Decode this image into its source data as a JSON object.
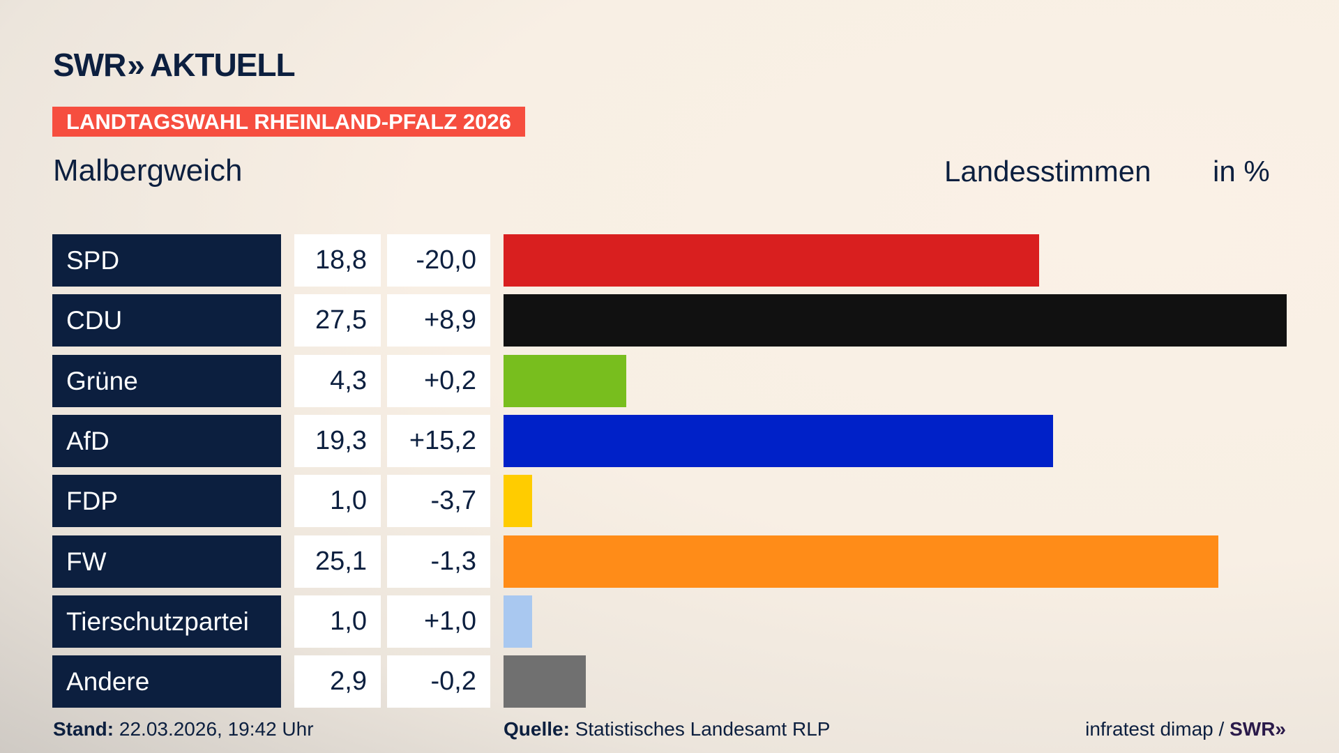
{
  "header": {
    "logo": "SWR AKTUELL",
    "logo_brand": "SWR",
    "logo_suffix": "AKTUELL",
    "banner": "LANDTAGSWAHL RHEINLAND-PFALZ 2026",
    "region": "Malbergweich"
  },
  "chart_data": {
    "type": "bar",
    "orientation": "horizontal",
    "title": "Landesstimmen",
    "unit": "in %",
    "categories": [
      "SPD",
      "CDU",
      "Grüne",
      "AfD",
      "FDP",
      "FW",
      "Tierschutzpartei",
      "Andere"
    ],
    "values": [
      18.8,
      27.5,
      4.3,
      19.3,
      1.0,
      25.1,
      1.0,
      2.9
    ],
    "value_labels": [
      "18,8",
      "27,5",
      "4,3",
      "19,3",
      "1,0",
      "25,1",
      "1,0",
      "2,9"
    ],
    "changes": [
      "-20,0",
      "+8,9",
      "+0,2",
      "+15,2",
      "-3,7",
      "-1,3",
      "+1,0",
      "-0,2"
    ],
    "colors": [
      "#d91f1f",
      "#111111",
      "#78be1e",
      "#0021c8",
      "#ffcc00",
      "#ff8c18",
      "#a9c8f0",
      "#707070"
    ],
    "xlim": [
      0,
      27.5
    ],
    "grid": false,
    "legend": "none"
  },
  "footer": {
    "stand_label": "Stand:",
    "stand_value": "22.03.2026, 19:42 Uhr",
    "quelle_label": "Quelle:",
    "quelle_value": "Statistisches Landesamt RLP",
    "credit": "infratest dimap /",
    "credit_brand": "SWR"
  }
}
